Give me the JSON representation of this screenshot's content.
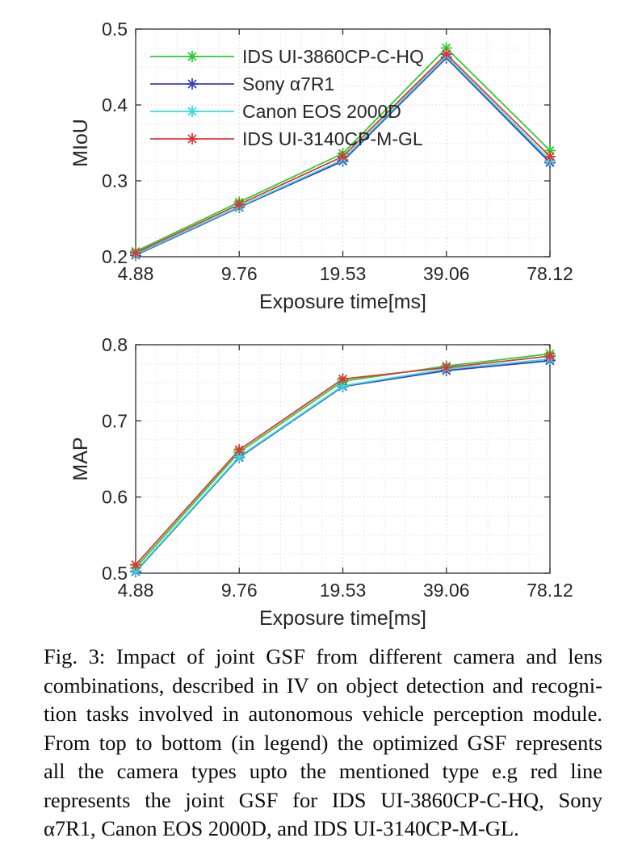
{
  "page_background": "#ffffff",
  "text_color": "#262626",
  "axis_color": "#3c3c3c",
  "grid_major_color": "#d4d4d4",
  "grid_minor_color": "#e2e2e2",
  "chart_data": [
    {
      "type": "line",
      "title": "",
      "xlabel": "Exposure time[ms]",
      "ylabel": "MIoU",
      "categories": [
        "4.88",
        "9.76",
        "19.53",
        "39.06",
        "78.12"
      ],
      "ylim": [
        0.2,
        0.5
      ],
      "yticks": [
        "0.2",
        "0.3",
        "0.4",
        "0.5"
      ],
      "grid": "on, dotted major and minor",
      "legend_position": "top-left inside, no box",
      "legend_visible": true,
      "marker": "asterisk",
      "series": [
        {
          "name": "IDS UI-3860CP-C-HQ",
          "color": "#2ccc2c",
          "values": [
            0.207,
            0.272,
            0.336,
            0.475,
            0.34
          ]
        },
        {
          "name": "Sony α7R1",
          "color": "#3a3ec2",
          "values": [
            0.202,
            0.265,
            0.326,
            0.462,
            0.324
          ]
        },
        {
          "name": "Canon EOS 2000D",
          "color": "#33dde0",
          "values": [
            0.203,
            0.266,
            0.328,
            0.464,
            0.327
          ]
        },
        {
          "name": "IDS UI-3140CP-M-GL",
          "color": "#e03535",
          "values": [
            0.205,
            0.269,
            0.332,
            0.467,
            0.332
          ]
        }
      ]
    },
    {
      "type": "line",
      "title": "",
      "xlabel": "Exposure time[ms]",
      "ylabel": "MAP",
      "categories": [
        "4.88",
        "9.76",
        "19.53",
        "39.06",
        "78.12"
      ],
      "ylim": [
        0.5,
        0.8
      ],
      "yticks": [
        "0.5",
        "0.6",
        "0.7",
        "0.8"
      ],
      "grid": "on, dotted major and minor",
      "legend_position": "none",
      "legend_visible": false,
      "marker": "asterisk",
      "series": [
        {
          "name": "IDS UI-3860CP-C-HQ",
          "color": "#2ccc2c",
          "values": [
            0.507,
            0.659,
            0.752,
            0.772,
            0.788
          ]
        },
        {
          "name": "Sony α7R1",
          "color": "#3a3ec2",
          "values": [
            0.502,
            0.652,
            0.745,
            0.766,
            0.779
          ]
        },
        {
          "name": "Canon EOS 2000D",
          "color": "#33dde0",
          "values": [
            0.503,
            0.653,
            0.746,
            0.768,
            0.781
          ]
        },
        {
          "name": "IDS UI-3140CP-M-GL",
          "color": "#e03535",
          "values": [
            0.511,
            0.662,
            0.755,
            0.77,
            0.785
          ]
        }
      ]
    }
  ],
  "caption": {
    "lines": [
      "Fig. 3: Impact of joint GSF from different camera and lens",
      "combinations, described in IV on object detection and recogni-",
      "tion tasks involved in autonomous vehicle perception module.",
      "From top to bottom (in legend) the optimized GSF represents",
      "all the camera types upto the mentioned type e.g red line",
      "represents the joint GSF for IDS UI-3860CP-C-HQ, Sony",
      "α7R1, Canon EOS 2000D, and IDS UI-3140CP-M-GL."
    ]
  }
}
